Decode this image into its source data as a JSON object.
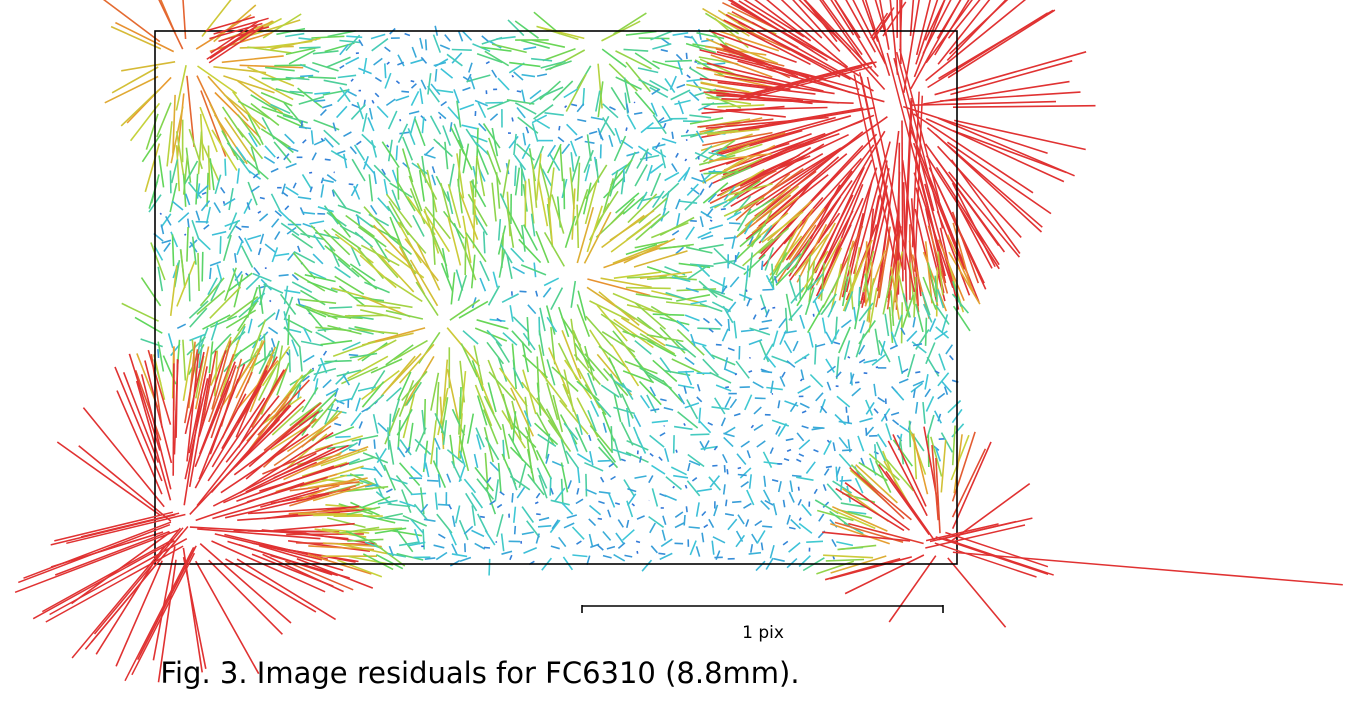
{
  "chart_data": {
    "type": "vector-field",
    "title": "",
    "caption": "Fig. 3. Image residuals for FC6310 (8.8mm).",
    "scale_bar": {
      "label": "1 pix",
      "value": 1,
      "unit": "pix"
    },
    "frame": {
      "border": true,
      "grid": false,
      "legend": "none"
    },
    "grid_samples": {
      "columns": 64,
      "rows": 40
    },
    "color_ramp": [
      "#2f5fd8",
      "#3ec8d8",
      "#5fd65a",
      "#c8d23a",
      "#e89b30",
      "#e03232"
    ],
    "residual_field": {
      "seed": 3,
      "base_magnitude_pix": 0.028,
      "hotspots": [
        {
          "name": "top-left corner",
          "u": 0.04,
          "v": 0.05,
          "magnitude_pix": 0.17,
          "radius": 0.11,
          "direction": "radial"
        },
        {
          "name": "top-right corner",
          "u": 0.93,
          "v": 0.14,
          "magnitude_pix": 0.42,
          "radius": 0.13,
          "direction": "radial"
        },
        {
          "name": "bottom-left corner",
          "u": 0.03,
          "v": 0.93,
          "magnitude_pix": 0.34,
          "radius": 0.14,
          "direction": "radial"
        },
        {
          "name": "bottom-right corner",
          "u": 0.98,
          "v": 0.97,
          "magnitude_pix": 0.26,
          "radius": 0.07,
          "direction": "radial"
        },
        {
          "name": "center-left swirl",
          "u": 0.36,
          "v": 0.55,
          "magnitude_pix": 0.12,
          "radius": 0.14,
          "direction": "radial"
        },
        {
          "name": "center swirl",
          "u": 0.53,
          "v": 0.46,
          "magnitude_pix": 0.11,
          "radius": 0.12,
          "direction": "radial"
        },
        {
          "name": "left edge",
          "u": 0.02,
          "v": 0.55,
          "magnitude_pix": 0.07,
          "radius": 0.08,
          "direction": "radial"
        },
        {
          "name": "upper band",
          "u": 0.55,
          "v": 0.02,
          "magnitude_pix": 0.1,
          "radius": 0.09,
          "direction": "radial"
        }
      ],
      "outliers": [
        {
          "u": 0.99,
          "v": 0.97,
          "dx_pix": 1.08,
          "dy_pix": 0.09
        },
        {
          "u": 0.97,
          "v": 0.96,
          "dx_pix": 0.26,
          "dy_pix": -0.06
        },
        {
          "u": 0.98,
          "v": 0.95,
          "dx_pix": 0.3,
          "dy_pix": 0.1
        },
        {
          "u": 0.03,
          "v": 0.96,
          "dx_pix": -0.38,
          "dy_pix": 0.21
        },
        {
          "u": 0.04,
          "v": 0.94,
          "dx_pix": -0.3,
          "dy_pix": 0.36
        },
        {
          "u": 0.05,
          "v": 0.97,
          "dx_pix": -0.19,
          "dy_pix": 0.37
        },
        {
          "u": 0.02,
          "v": 0.93,
          "dx_pix": -0.42,
          "dy_pix": 0.16
        },
        {
          "u": 0.03,
          "v": 0.9,
          "dx_pix": -0.33,
          "dy_pix": 0.08
        },
        {
          "u": 0.92,
          "v": 0.04,
          "dx_pix": 0.13,
          "dy_pix": 0.5
        },
        {
          "u": 0.88,
          "v": 0.08,
          "dx_pix": 0.12,
          "dy_pix": 0.55
        },
        {
          "u": 0.95,
          "v": 0.12,
          "dx_pix": -0.02,
          "dy_pix": 0.47
        },
        {
          "u": 0.73,
          "v": 0.12,
          "dx_pix": 0.35,
          "dy_pix": -0.09
        },
        {
          "u": 0.9,
          "v": 0.02,
          "dx_pix": 0.06,
          "dy_pix": -0.09
        },
        {
          "u": 0.07,
          "v": 0.01,
          "dx_pix": 0.14,
          "dy_pix": -0.04
        },
        {
          "u": 0.07,
          "v": 0.05,
          "dx_pix": 0.15,
          "dy_pix": -0.1
        }
      ]
    }
  }
}
